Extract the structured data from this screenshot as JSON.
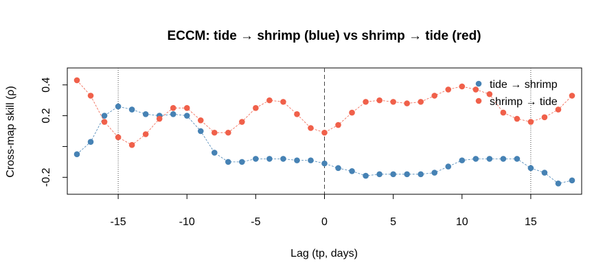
{
  "chart_data": {
    "type": "scatter",
    "title": "ECCM: tide → shrimp (blue) vs shrimp → tide (red)",
    "xlabel": "Lag (tp, days)",
    "ylabel": "Cross-map skill (ρ)",
    "xlim": [
      -18.7,
      18.7
    ],
    "ylim": [
      -0.31,
      0.51
    ],
    "xticks": [
      -15,
      -10,
      -5,
      0,
      5,
      10,
      15
    ],
    "xtick_labels": [
      "-15",
      "-10",
      "-5",
      "0",
      "5",
      "10",
      "15"
    ],
    "yticks": [
      -0.2,
      0.0,
      0.2,
      0.4
    ],
    "ytick_labels": [
      "-0.2",
      "",
      "0.2",
      "0.4"
    ],
    "vlines": [
      {
        "x": -15,
        "style": "dotted"
      },
      {
        "x": 0,
        "style": "dashed"
      },
      {
        "x": 15,
        "style": "dotted"
      }
    ],
    "grid": false,
    "legend_position": "top-right",
    "x": [
      -18,
      -17,
      -16,
      -15,
      -14,
      -13,
      -12,
      -11,
      -10,
      -9,
      -8,
      -7,
      -6,
      -5,
      -4,
      -3,
      -2,
      -1,
      0,
      1,
      2,
      3,
      4,
      5,
      6,
      7,
      8,
      9,
      10,
      11,
      12,
      13,
      14,
      15,
      16,
      17,
      18
    ],
    "series": [
      {
        "name": "tide → shrimp",
        "color": "#4682B4",
        "values": [
          -0.05,
          0.03,
          0.2,
          0.26,
          0.24,
          0.21,
          0.2,
          0.21,
          0.2,
          0.1,
          -0.04,
          -0.1,
          -0.1,
          -0.08,
          -0.08,
          -0.08,
          -0.09,
          -0.09,
          -0.11,
          -0.14,
          -0.16,
          -0.19,
          -0.18,
          -0.18,
          -0.18,
          -0.18,
          -0.17,
          -0.13,
          -0.09,
          -0.08,
          -0.08,
          -0.08,
          -0.08,
          -0.14,
          -0.17,
          -0.24,
          -0.22
        ]
      },
      {
        "name": "shrimp → tide",
        "color": "#F0604A",
        "values": [
          0.43,
          0.33,
          0.16,
          0.06,
          0.01,
          0.08,
          0.18,
          0.25,
          0.25,
          0.17,
          0.09,
          0.09,
          0.16,
          0.25,
          0.3,
          0.29,
          0.21,
          0.12,
          0.09,
          0.14,
          0.22,
          0.29,
          0.3,
          0.29,
          0.28,
          0.29,
          0.33,
          0.37,
          0.39,
          0.37,
          0.34,
          0.22,
          0.18,
          0.16,
          0.19,
          0.24,
          0.33
        ]
      }
    ]
  }
}
